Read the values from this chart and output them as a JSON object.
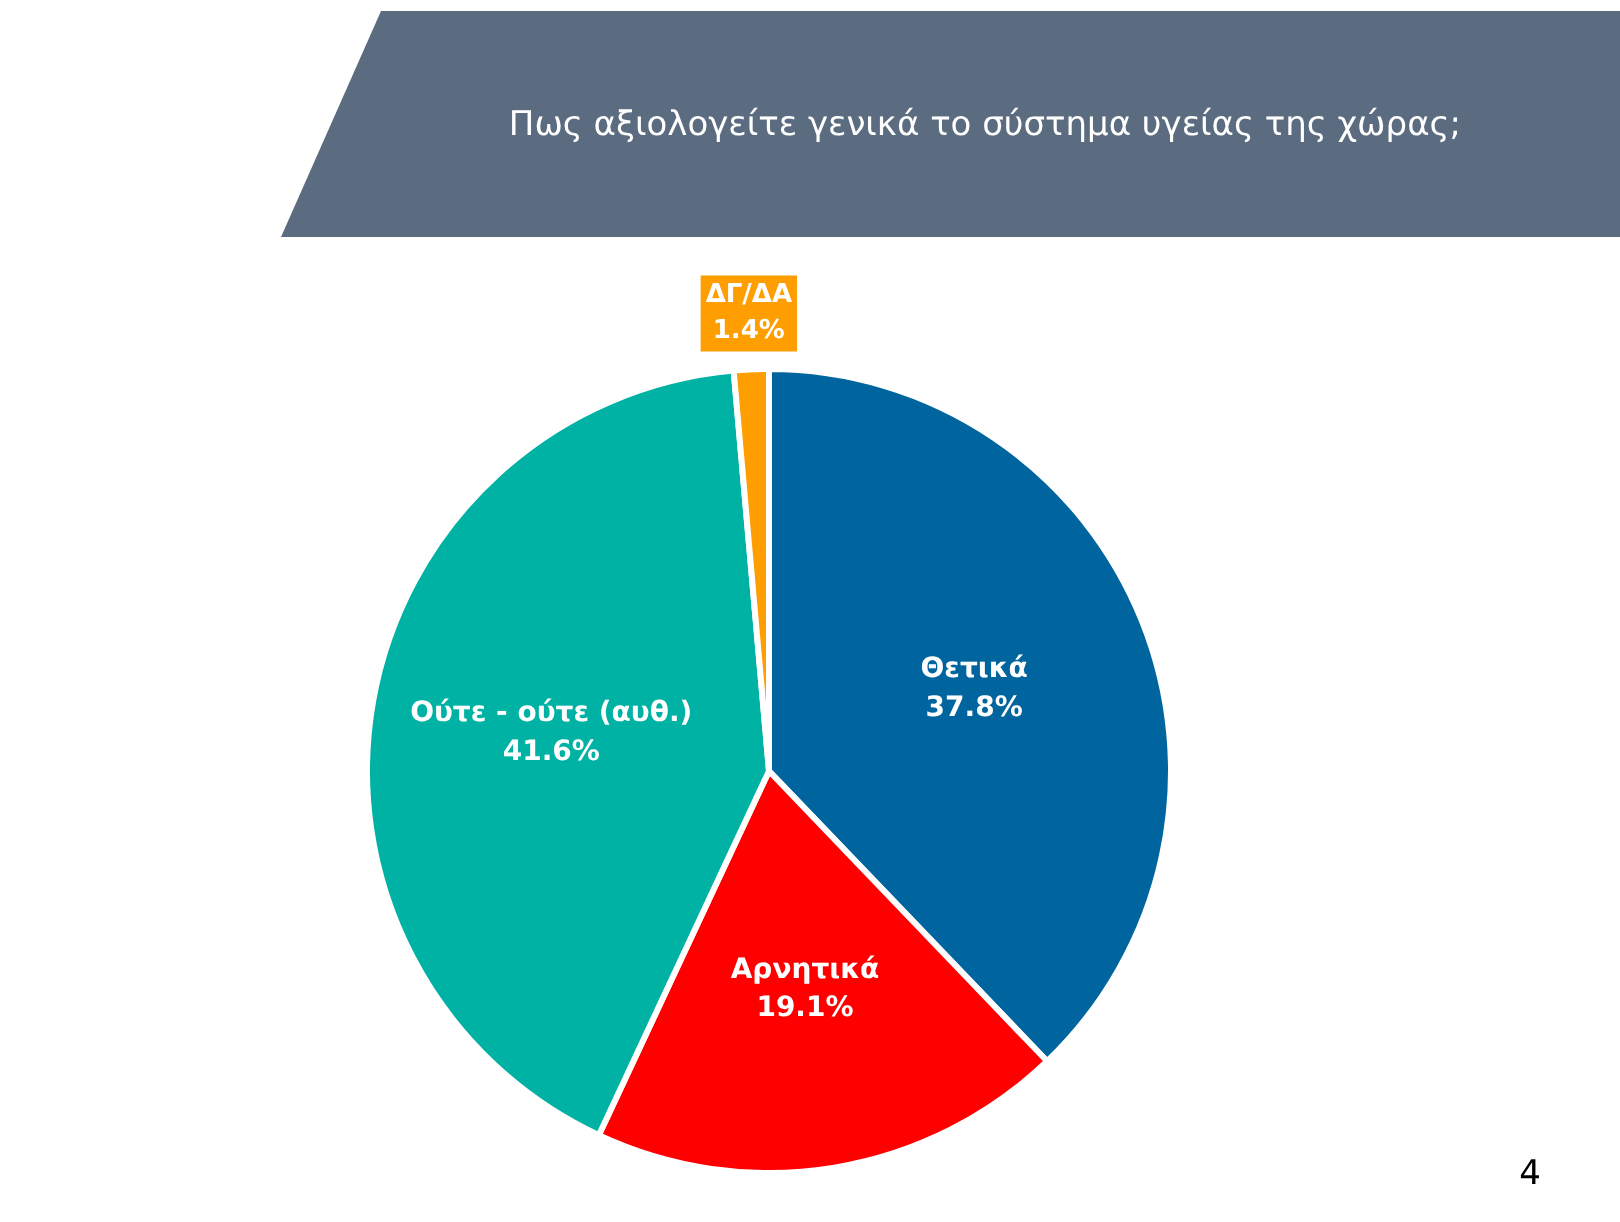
{
  "chart_data": {
    "type": "pie",
    "title": "Πως αξιολογείτε γενικά το σύστημα υγείας της χώρας;",
    "categories": [
      "Θετικά",
      "Αρνητικά",
      "Ούτε - ούτε (αυθ.)",
      "ΔΓ/ΔΑ"
    ],
    "values": [
      37.8,
      19.1,
      41.6,
      1.4
    ],
    "colors": [
      "#00659e",
      "#ff0000",
      "#00b2a4",
      "#ff9e00"
    ],
    "value_labels": [
      "37.8%",
      "19.1%",
      "41.6%",
      "1.4%"
    ],
    "annotations": [
      "4"
    ]
  }
}
